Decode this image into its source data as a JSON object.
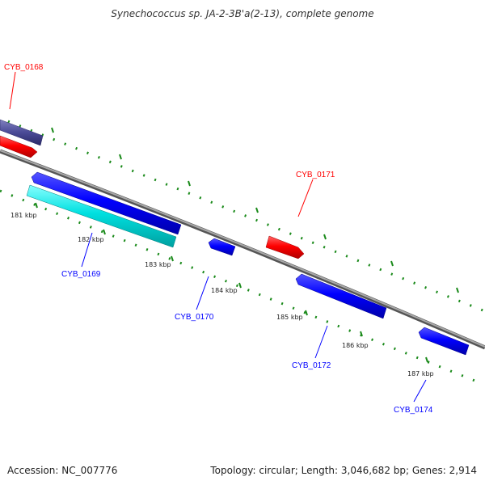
{
  "title": "Synechococcus sp. JA-2-3B'a(2-13), complete genome",
  "footer": {
    "accession": "Accession: NC_007776",
    "summary": "Topology: circular; Length: 3,046,682 bp; Genes: 2,914"
  },
  "ticks": [
    "181 kbp",
    "182 kbp",
    "183 kbp",
    "184 kbp",
    "185 kbp",
    "186 kbp",
    "187 kbp"
  ],
  "genes": [
    {
      "id": "CYB_0168",
      "color": "#ff0000",
      "strand": "forward"
    },
    {
      "id": "CYB_0169",
      "color": "#0000ff",
      "strand": "reverse"
    },
    {
      "id": "CYB_0170",
      "color": "#0000ff",
      "strand": "reverse"
    },
    {
      "id": "CYB_0171",
      "color": "#ff0000",
      "strand": "forward"
    },
    {
      "id": "CYB_0172",
      "color": "#0000ff",
      "strand": "reverse"
    },
    {
      "id": "CYB_0174",
      "color": "#0000ff",
      "strand": "reverse"
    }
  ],
  "colors": {
    "forward_cds": "#ff0000",
    "reverse_cds": "#0000ff",
    "reverse_rna": "#00e0e0",
    "forward_extra": "#4a4a96",
    "backbone": "#8a8a8a",
    "tick_marks": "#1a8a1a"
  }
}
